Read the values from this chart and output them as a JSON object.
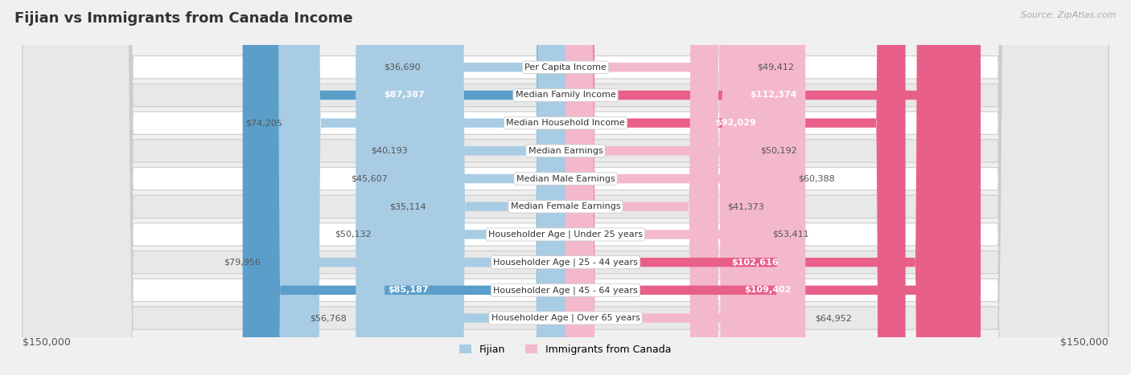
{
  "title": "Fijian vs Immigrants from Canada Income",
  "source": "Source: ZipAtlas.com",
  "categories": [
    "Per Capita Income",
    "Median Family Income",
    "Median Household Income",
    "Median Earnings",
    "Median Male Earnings",
    "Median Female Earnings",
    "Householder Age | Under 25 years",
    "Householder Age | 25 - 44 years",
    "Householder Age | 45 - 64 years",
    "Householder Age | Over 65 years"
  ],
  "fijian_values": [
    36690,
    87387,
    74205,
    40193,
    45607,
    35114,
    50132,
    79956,
    85187,
    56768
  ],
  "canada_values": [
    49412,
    112374,
    92029,
    50192,
    60388,
    41373,
    53411,
    102616,
    109402,
    64952
  ],
  "fijian_color_light": "#a8cce4",
  "fijian_color_dark": "#5b9ec9",
  "canada_color_light": "#f4b8cc",
  "canada_color_dark": "#e8608a",
  "text_color": "#555555",
  "white_text_color": "#ffffff",
  "max_value": 150000,
  "xlabel_left": "$150,000",
  "xlabel_right": "$150,000",
  "legend_fijian": "Fijian",
  "legend_canada": "Immigrants from Canada",
  "background_color": "#f0f0f0",
  "row_bg_white": "#ffffff",
  "row_bg_gray": "#e8e8e8",
  "row_border_color": "#cccccc",
  "white_value_threshold": 85000,
  "title_fontsize": 13,
  "label_fontsize": 8,
  "value_fontsize": 8
}
